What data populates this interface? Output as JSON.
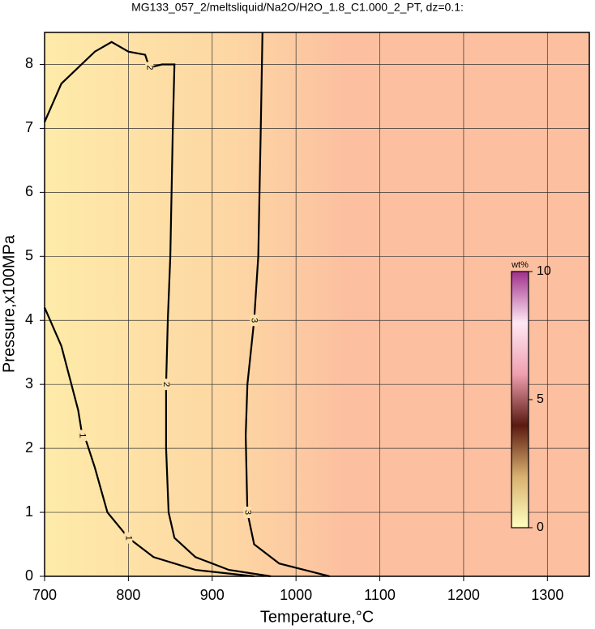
{
  "chart_data": {
    "type": "contour",
    "title": "MG133_057_2/meltsliquid/Na2O/H2O_1.8_C1.000_2_PT, dz=0.1:",
    "x_label": "Temperature,°C",
    "y_label": "Pressure,x100MPa",
    "xlim": [
      700,
      1350
    ],
    "ylim": [
      0,
      8.5
    ],
    "xticks": [
      700,
      800,
      900,
      1000,
      1100,
      1200,
      1300
    ],
    "yticks": [
      0,
      1,
      2,
      3,
      4,
      5,
      6,
      7,
      8
    ],
    "grid": true,
    "contours": [
      {
        "level": 1,
        "x": [
          700,
          720,
          740,
          745,
          750,
          760,
          775,
          800,
          830,
          880,
          950
        ],
        "y": [
          4.2,
          3.6,
          2.6,
          2.2,
          2.1,
          1.7,
          1.0,
          0.6,
          0.3,
          0.1,
          0
        ]
      },
      {
        "level": 2,
        "x": [
          700,
          720,
          760,
          780,
          800,
          820,
          825,
          840,
          855,
          853,
          850,
          847,
          845,
          845,
          848,
          855,
          880,
          920,
          970
        ],
        "y": [
          7.1,
          7.7,
          8.2,
          8.35,
          8.2,
          8.15,
          7.95,
          8.0,
          8.0,
          7.0,
          5.0,
          4.0,
          3.0,
          2.0,
          1.0,
          0.6,
          0.3,
          0.1,
          0
        ]
      },
      {
        "level": 3,
        "x": [
          960,
          958,
          955,
          950,
          942,
          940,
          942,
          950,
          980,
          1040
        ],
        "y": [
          8.5,
          7.0,
          5.0,
          4.0,
          3.0,
          2.2,
          1.0,
          0.5,
          0.2,
          0
        ]
      }
    ],
    "colorbar": {
      "label": "wt%",
      "lim": [
        0,
        10
      ],
      "ticks": [
        0,
        5,
        10
      ],
      "colors": [
        "#ffffc0",
        "#d9b070",
        "#5a1a10",
        "#f0a0b0",
        "#ffe8f4",
        "#a0308a"
      ]
    }
  }
}
